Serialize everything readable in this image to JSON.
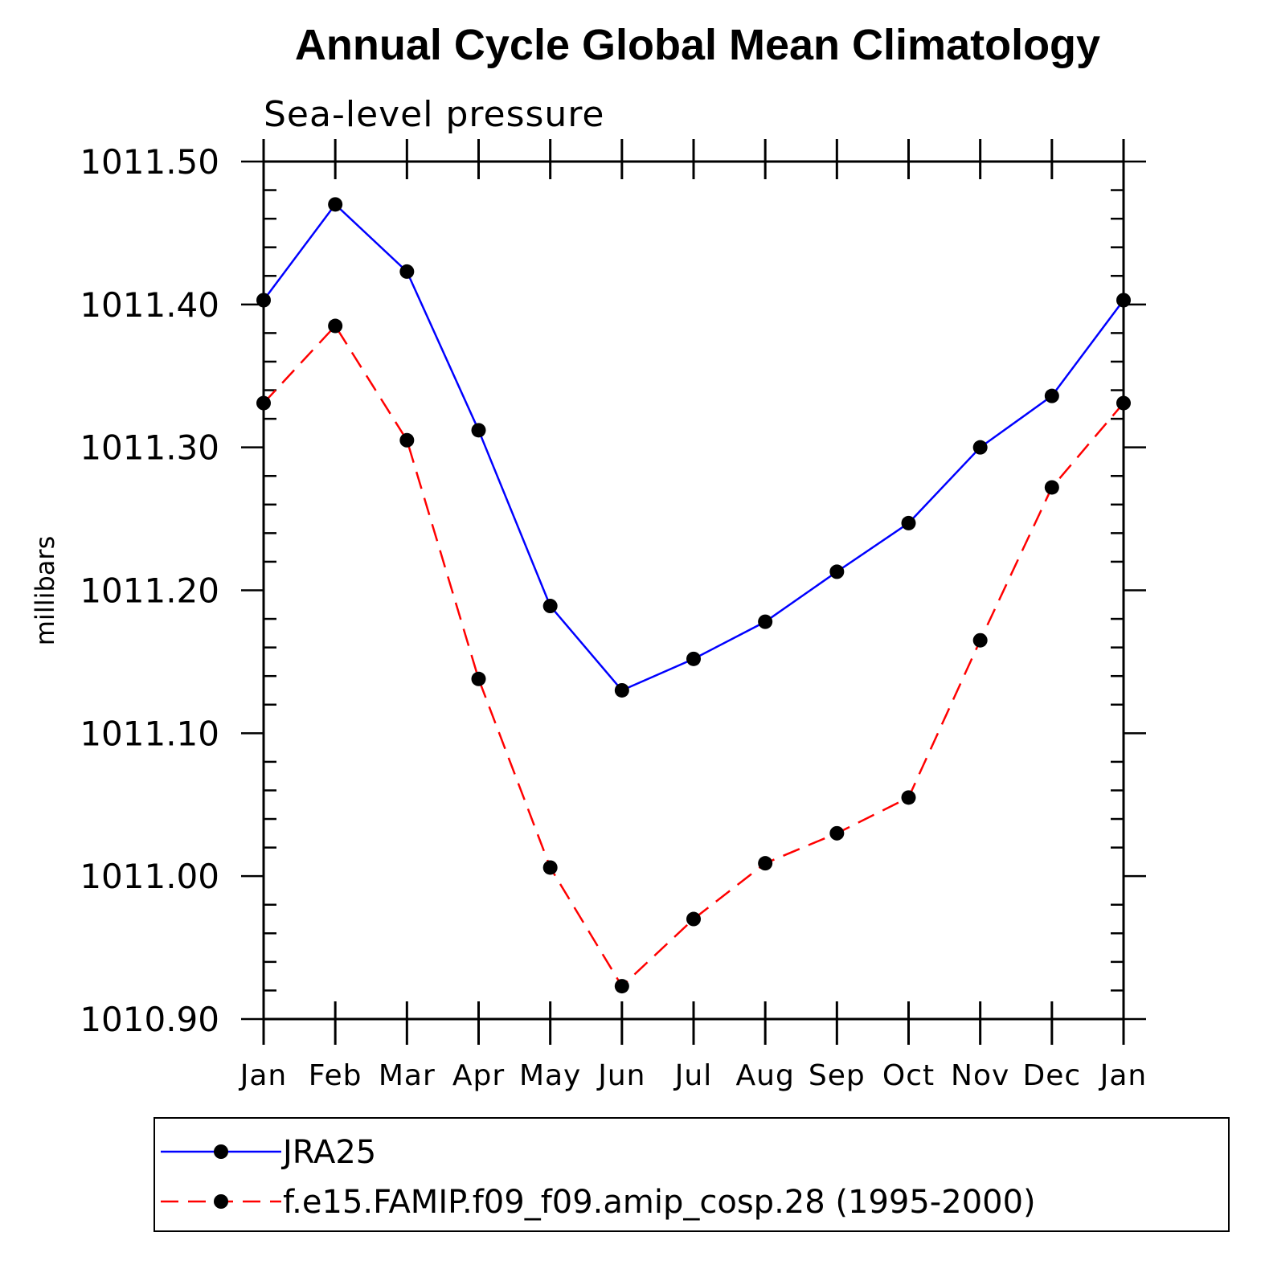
{
  "chart_data": {
    "type": "line",
    "title": "Annual Cycle Global Mean Climatology",
    "subtitle": "Sea-level pressure",
    "xlabel": "",
    "ylabel": "millibars",
    "categories": [
      "Jan",
      "Feb",
      "Mar",
      "Apr",
      "May",
      "Jun",
      "Jul",
      "Aug",
      "Sep",
      "Oct",
      "Nov",
      "Dec",
      "Jan"
    ],
    "y_ticks": [
      "1010.90",
      "1011.00",
      "1011.10",
      "1011.20",
      "1011.30",
      "1011.40",
      "1011.50"
    ],
    "ylim": [
      1010.9,
      1011.5
    ],
    "series": [
      {
        "name": "JRA25",
        "color": "#0000ff",
        "line_style": "solid",
        "marker": "filled-circle",
        "values": [
          1011.403,
          1011.47,
          1011.423,
          1011.312,
          1011.189,
          1011.13,
          1011.152,
          1011.178,
          1011.213,
          1011.247,
          1011.3,
          1011.336,
          1011.403
        ]
      },
      {
        "name": "f.e15.FAMIP.f09_f09.amip_cosp.28 (1995-2000)",
        "color": "#ff0000",
        "line_style": "dashed",
        "marker": "filled-circle",
        "values": [
          1011.331,
          1011.385,
          1011.305,
          1011.138,
          1011.006,
          1010.923,
          1010.97,
          1011.009,
          1011.03,
          1011.055,
          1011.165,
          1011.272,
          1011.331
        ]
      }
    ],
    "legend_placement": "bottom",
    "grid": false
  }
}
